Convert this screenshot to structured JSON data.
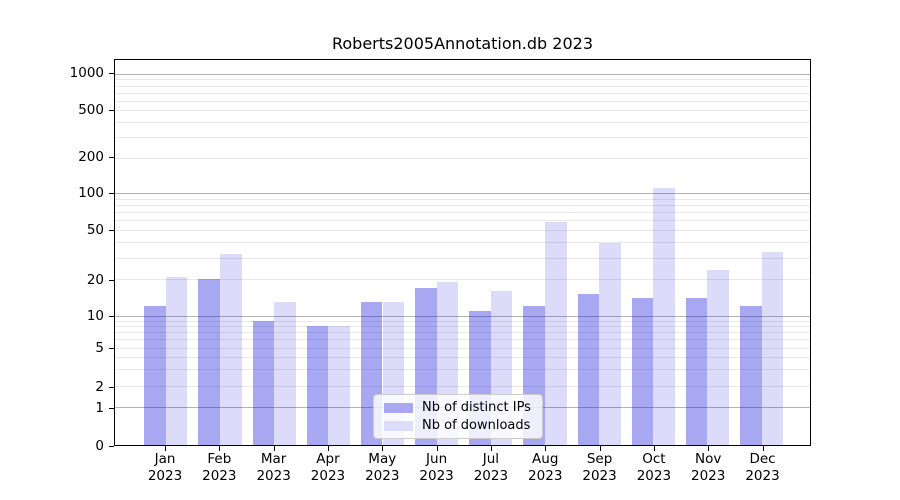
{
  "title": "Roberts2005Annotation.db 2023",
  "legend": {
    "items": [
      {
        "label": "Nb of distinct IPs",
        "color": "rgba(20,20,220,0.37)",
        "solid_color": "#a8a8f2"
      },
      {
        "label": "Nb of downloads",
        "color": "rgba(20,20,220,0.15)",
        "solid_color": "#dbdbfa"
      }
    ],
    "position": "lower center"
  },
  "chart_data": {
    "type": "bar",
    "title": "Roberts2005Annotation.db 2023",
    "categories": [
      "Jan 2023",
      "Feb 2023",
      "Mar 2023",
      "Apr 2023",
      "May 2023",
      "Jun 2023",
      "Jul 2023",
      "Aug 2023",
      "Sep 2023",
      "Oct 2023",
      "Nov 2023",
      "Dec 2023"
    ],
    "series": [
      {
        "name": "Nb of distinct IPs",
        "values": [
          12,
          20,
          9,
          8,
          13,
          17,
          11,
          12,
          15,
          14,
          14,
          12
        ]
      },
      {
        "name": "Nb of downloads",
        "values": [
          21,
          32,
          13,
          8,
          13,
          19,
          16,
          58,
          39,
          112,
          24,
          33
        ]
      }
    ],
    "xlabel": "",
    "ylabel": "",
    "yscale": "symlog",
    "ylim": [
      0,
      1200
    ],
    "yticks_labeled": [
      0,
      1,
      2,
      5,
      10,
      20,
      50,
      100,
      200,
      500,
      1000
    ],
    "yticks_major": [
      1,
      10,
      100,
      1000
    ],
    "yticks_minor_unlabeled": [
      3,
      4,
      6,
      7,
      8,
      9,
      30,
      40,
      60,
      70,
      80,
      90,
      300,
      400,
      600,
      700,
      800,
      900
    ],
    "grid": true,
    "legend_position": "lower center"
  },
  "colors": {
    "major_grid": "#b3b3b3",
    "minor_grid": "#e8e8e8",
    "axis": "#000000",
    "background": "#ffffff"
  }
}
